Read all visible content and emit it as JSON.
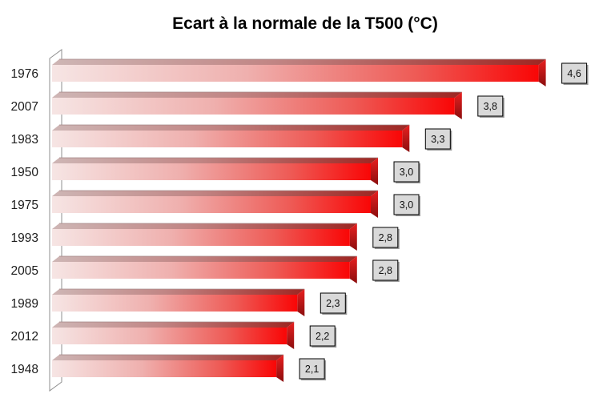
{
  "chart_data": {
    "type": "bar",
    "orientation": "horizontal",
    "style": "3d-gradient",
    "title": "Ecart à la normale de la T500 (°C)",
    "categories": [
      "1976",
      "2007",
      "1983",
      "1950",
      "1975",
      "1993",
      "2005",
      "1989",
      "2012",
      "1948"
    ],
    "values": [
      4.6,
      3.8,
      3.3,
      3.0,
      3.0,
      2.8,
      2.8,
      2.3,
      2.2,
      2.1
    ],
    "value_labels": [
      "4,6",
      "3,8",
      "3,3",
      "3,0",
      "3,0",
      "2,8",
      "2,8",
      "2,3",
      "2,2",
      "2,1"
    ],
    "xlabel": "",
    "ylabel": "",
    "xlim": [
      0,
      4.6
    ],
    "grid": "off",
    "legend": "none",
    "colors": {
      "background": "#FFFFFF",
      "bar_front_start": "#F6E5E4",
      "bar_front_mid1": "#EFB0AE",
      "bar_front_mid2": "#EE5A55",
      "bar_front_end": "#F90606",
      "bar_top_start": "#CEB6B5",
      "bar_top_mid": "#C18584",
      "bar_top_end": "#9E2622",
      "bar_side_top": "#E82020",
      "bar_side_bottom": "#8B0E0E",
      "bar_ridge_line": "#A38585",
      "axis_wall_line": "#8F8F8F",
      "value_box_bg": "#D9D9D9",
      "value_box_border": "#000000",
      "value_box_shadow": "#9B9B9B",
      "title_text": "#000000",
      "category_text": "#1C1C1C",
      "value_text": "#111111"
    }
  }
}
